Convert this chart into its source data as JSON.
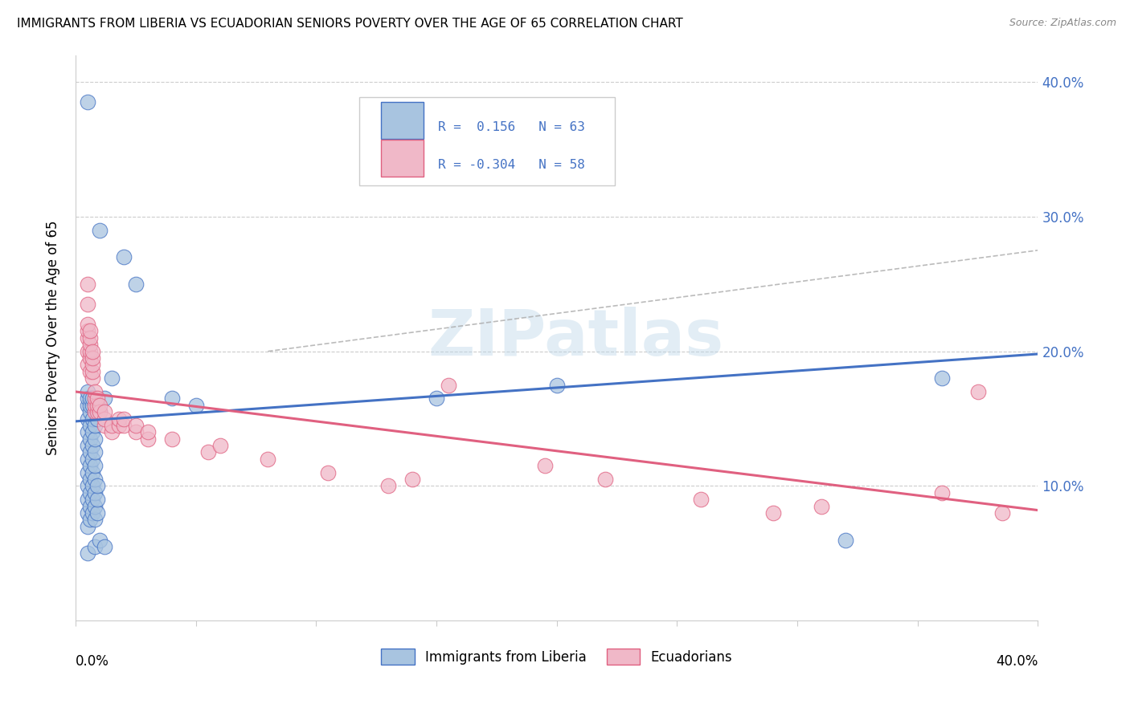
{
  "title": "IMMIGRANTS FROM LIBERIA VS ECUADORIAN SENIORS POVERTY OVER THE AGE OF 65 CORRELATION CHART",
  "source": "Source: ZipAtlas.com",
  "ylabel": "Seniors Poverty Over the Age of 65",
  "xlim": [
    0.0,
    0.4
  ],
  "ylim": [
    0.0,
    0.42
  ],
  "yticks": [
    0.1,
    0.2,
    0.3,
    0.4
  ],
  "ytick_labels": [
    "10.0%",
    "20.0%",
    "30.0%",
    "40.0%"
  ],
  "color_blue": "#a8c4e0",
  "color_pink": "#f0b8c8",
  "line_blue": "#4472c4",
  "line_pink": "#e06080",
  "background_color": "#ffffff",
  "blue_line": [
    0.0,
    0.148,
    0.4,
    0.198
  ],
  "pink_line": [
    0.0,
    0.17,
    0.4,
    0.082
  ],
  "dash_line": [
    0.08,
    0.2,
    0.4,
    0.275
  ],
  "blue_scatter": [
    [
      0.005,
      0.385
    ],
    [
      0.01,
      0.29
    ],
    [
      0.02,
      0.27
    ],
    [
      0.025,
      0.25
    ],
    [
      0.005,
      0.05
    ],
    [
      0.008,
      0.055
    ],
    [
      0.01,
      0.06
    ],
    [
      0.012,
      0.055
    ],
    [
      0.005,
      0.07
    ],
    [
      0.005,
      0.08
    ],
    [
      0.005,
      0.09
    ],
    [
      0.005,
      0.1
    ],
    [
      0.005,
      0.11
    ],
    [
      0.005,
      0.12
    ],
    [
      0.005,
      0.13
    ],
    [
      0.005,
      0.14
    ],
    [
      0.005,
      0.15
    ],
    [
      0.005,
      0.16
    ],
    [
      0.005,
      0.165
    ],
    [
      0.005,
      0.17
    ],
    [
      0.006,
      0.075
    ],
    [
      0.006,
      0.085
    ],
    [
      0.006,
      0.095
    ],
    [
      0.006,
      0.105
    ],
    [
      0.006,
      0.115
    ],
    [
      0.006,
      0.125
    ],
    [
      0.006,
      0.135
    ],
    [
      0.006,
      0.145
    ],
    [
      0.006,
      0.155
    ],
    [
      0.006,
      0.16
    ],
    [
      0.006,
      0.165
    ],
    [
      0.007,
      0.08
    ],
    [
      0.007,
      0.09
    ],
    [
      0.007,
      0.1
    ],
    [
      0.007,
      0.11
    ],
    [
      0.007,
      0.12
    ],
    [
      0.007,
      0.13
    ],
    [
      0.007,
      0.14
    ],
    [
      0.007,
      0.15
    ],
    [
      0.007,
      0.16
    ],
    [
      0.007,
      0.165
    ],
    [
      0.008,
      0.075
    ],
    [
      0.008,
      0.085
    ],
    [
      0.008,
      0.095
    ],
    [
      0.008,
      0.105
    ],
    [
      0.008,
      0.115
    ],
    [
      0.008,
      0.125
    ],
    [
      0.008,
      0.135
    ],
    [
      0.008,
      0.145
    ],
    [
      0.009,
      0.08
    ],
    [
      0.009,
      0.09
    ],
    [
      0.009,
      0.1
    ],
    [
      0.009,
      0.15
    ],
    [
      0.01,
      0.155
    ],
    [
      0.012,
      0.165
    ],
    [
      0.015,
      0.18
    ],
    [
      0.04,
      0.165
    ],
    [
      0.05,
      0.16
    ],
    [
      0.15,
      0.165
    ],
    [
      0.2,
      0.175
    ],
    [
      0.32,
      0.06
    ],
    [
      0.36,
      0.18
    ]
  ],
  "pink_scatter": [
    [
      0.005,
      0.19
    ],
    [
      0.005,
      0.2
    ],
    [
      0.005,
      0.21
    ],
    [
      0.005,
      0.215
    ],
    [
      0.005,
      0.22
    ],
    [
      0.005,
      0.235
    ],
    [
      0.005,
      0.25
    ],
    [
      0.006,
      0.185
    ],
    [
      0.006,
      0.195
    ],
    [
      0.006,
      0.2
    ],
    [
      0.006,
      0.205
    ],
    [
      0.006,
      0.21
    ],
    [
      0.006,
      0.215
    ],
    [
      0.007,
      0.18
    ],
    [
      0.007,
      0.185
    ],
    [
      0.007,
      0.19
    ],
    [
      0.007,
      0.195
    ],
    [
      0.007,
      0.2
    ],
    [
      0.008,
      0.155
    ],
    [
      0.008,
      0.16
    ],
    [
      0.008,
      0.165
    ],
    [
      0.008,
      0.17
    ],
    [
      0.009,
      0.155
    ],
    [
      0.009,
      0.16
    ],
    [
      0.009,
      0.165
    ],
    [
      0.01,
      0.155
    ],
    [
      0.01,
      0.16
    ],
    [
      0.012,
      0.145
    ],
    [
      0.012,
      0.15
    ],
    [
      0.012,
      0.155
    ],
    [
      0.015,
      0.14
    ],
    [
      0.015,
      0.145
    ],
    [
      0.018,
      0.145
    ],
    [
      0.018,
      0.15
    ],
    [
      0.02,
      0.145
    ],
    [
      0.02,
      0.15
    ],
    [
      0.025,
      0.14
    ],
    [
      0.025,
      0.145
    ],
    [
      0.03,
      0.135
    ],
    [
      0.03,
      0.14
    ],
    [
      0.04,
      0.135
    ],
    [
      0.055,
      0.125
    ],
    [
      0.06,
      0.13
    ],
    [
      0.08,
      0.12
    ],
    [
      0.105,
      0.11
    ],
    [
      0.13,
      0.1
    ],
    [
      0.14,
      0.105
    ],
    [
      0.155,
      0.175
    ],
    [
      0.195,
      0.115
    ],
    [
      0.22,
      0.105
    ],
    [
      0.26,
      0.09
    ],
    [
      0.29,
      0.08
    ],
    [
      0.31,
      0.085
    ],
    [
      0.36,
      0.095
    ],
    [
      0.375,
      0.17
    ],
    [
      0.385,
      0.08
    ]
  ]
}
